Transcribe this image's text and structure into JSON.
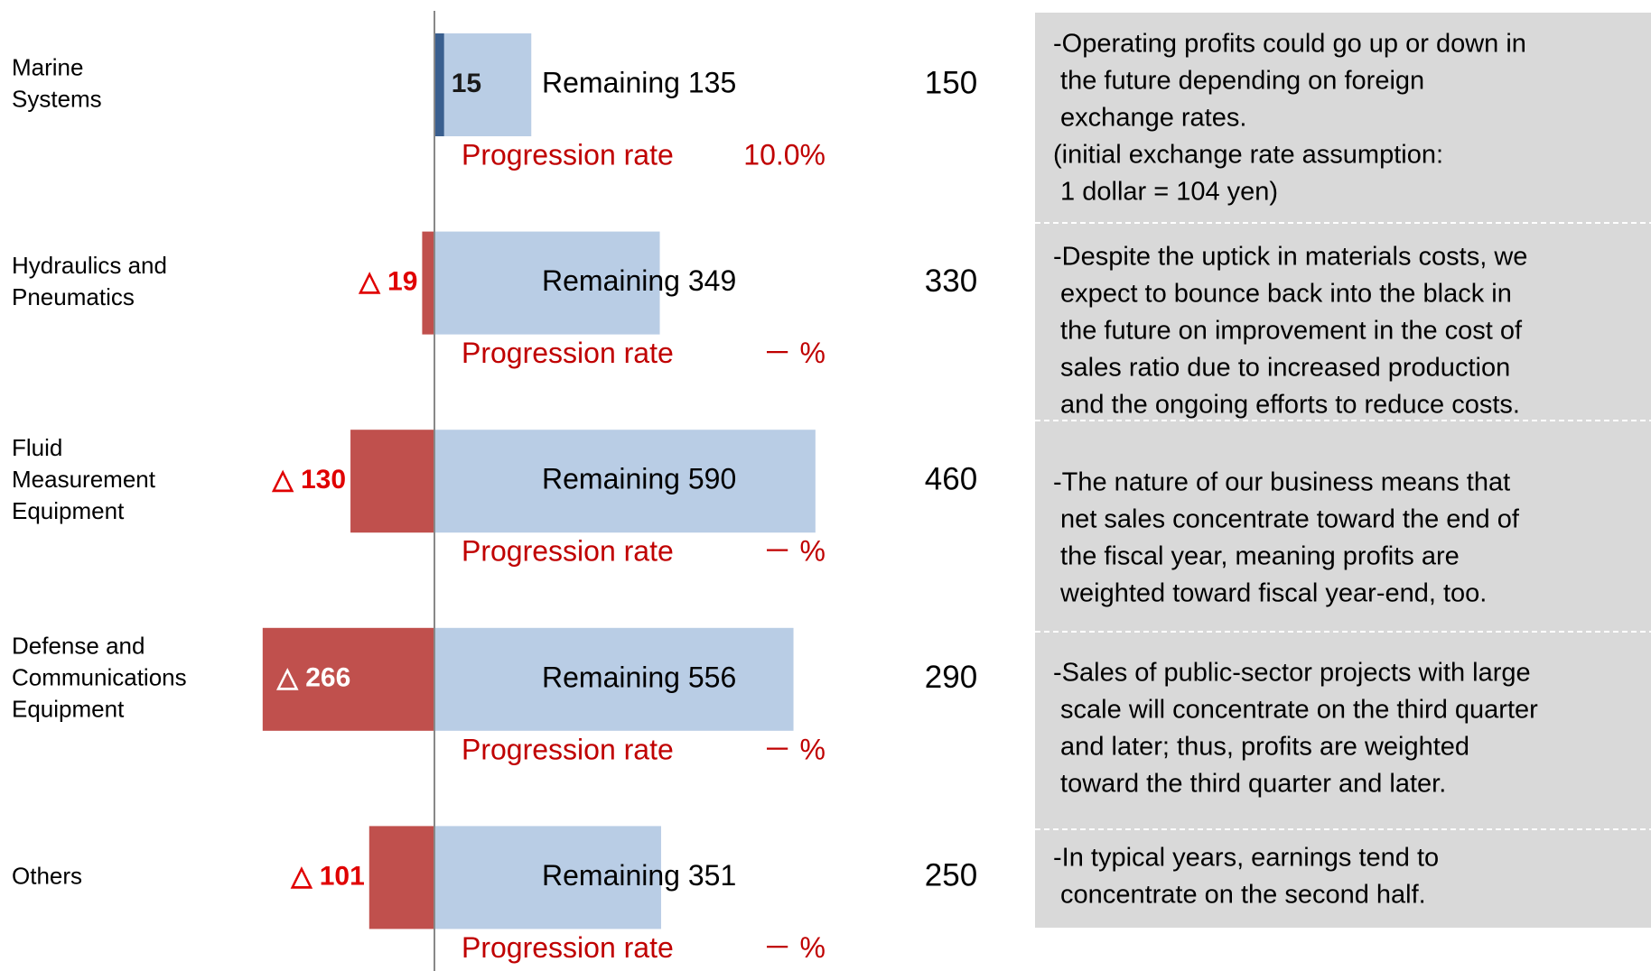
{
  "chart_data": {
    "type": "bar",
    "orientation": "horizontal",
    "categories": [
      [
        "Marine",
        "Systems"
      ],
      [
        "Hydraulics and",
        "Pneumatics"
      ],
      [
        "Fluid",
        "Measurement",
        "Equipment"
      ],
      [
        "Defense and",
        "Communications",
        "Equipment"
      ],
      [
        "Others"
      ]
    ],
    "series": [
      {
        "colors": [
          "#3a5f8f",
          "#c0504d",
          "#c0504d",
          "#c0504d",
          "#c0504d"
        ],
        "values": [
          15,
          -19,
          -130,
          -266,
          -101
        ],
        "value_labels": [
          "15",
          "△ 19",
          "△ 130",
          "△ 266",
          "△ 101"
        ]
      },
      {
        "color": "#b9cde5",
        "values": [
          135,
          349,
          590,
          556,
          351
        ],
        "value_labels": [
          "Remaining 135",
          "Remaining 349",
          "Remaining 590",
          "Remaining 556",
          "Remaining 351"
        ]
      }
    ],
    "targets": [
      150,
      330,
      460,
      290,
      250
    ],
    "progression_label": "Progression rate",
    "progression_rates": [
      "10.0%",
      "－ %",
      "－ %",
      "－ %",
      "－ %"
    ],
    "xlim": [
      -300,
      700
    ],
    "notes": [
      [
        "-Operating profits could go up or down in",
        " the future depending on foreign",
        " exchange rates.",
        "(initial exchange rate assumption:",
        " 1 dollar = 104 yen)"
      ],
      [
        "-Despite the uptick in materials costs, we",
        " expect to bounce back into the black in",
        " the future on improvement in the cost of",
        " sales ratio due to increased production",
        " and the ongoing efforts to reduce costs."
      ],
      [
        "-The nature of our business means that",
        " net sales concentrate toward the end of",
        " the fiscal year, meaning profits are",
        " weighted toward fiscal year-end, too."
      ],
      [
        "-Sales of public-sector projects with large",
        " scale will concentrate on the third quarter",
        " and later; thus, profits are weighted",
        " toward the third quarter and later."
      ],
      [
        "-In typical years, earnings tend to",
        " concentrate on the second half."
      ]
    ]
  }
}
